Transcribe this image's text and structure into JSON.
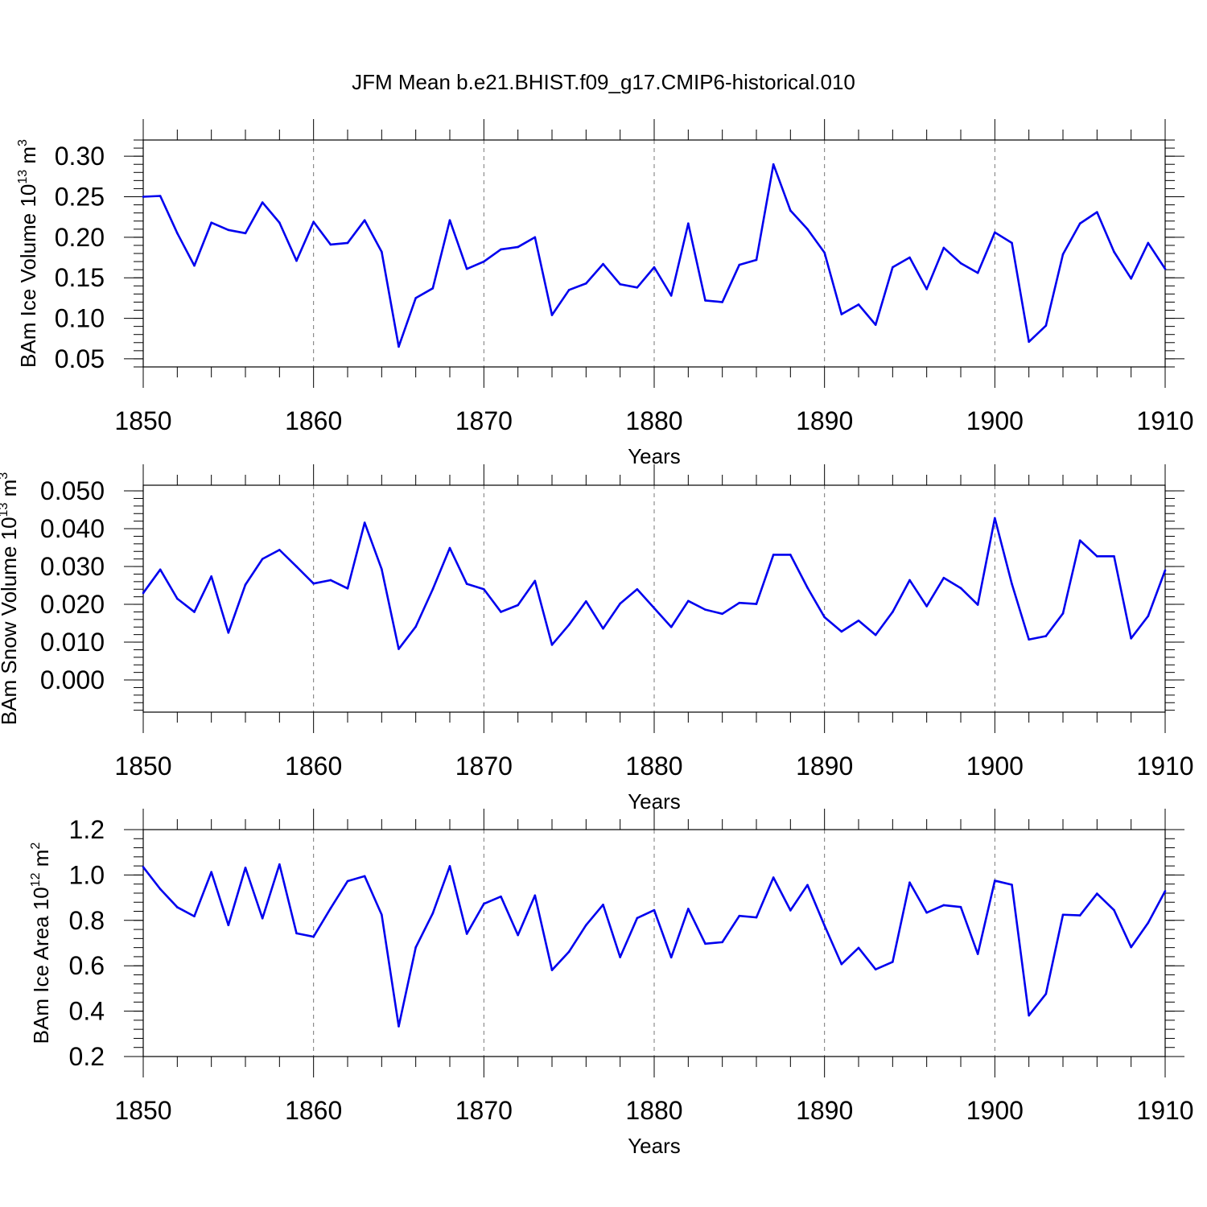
{
  "title": "JFM Mean b.e21.BHIST.f09_g17.CMIP6-historical.010",
  "colors": {
    "line": "#0000ee",
    "grid": "#777777",
    "axis": "#000000"
  },
  "chart_data": [
    {
      "type": "line",
      "xlabel": "Years",
      "ylabel": {
        "text": "BAm Ice Volume 10",
        "exp": "13",
        "unit": " m",
        "unit_exp": "3"
      },
      "xlim": [
        1850,
        1910
      ],
      "ylim": [
        0.04,
        0.32
      ],
      "x_ticks": [
        "1850",
        "1860",
        "1870",
        "1880",
        "1890",
        "1900",
        "1910"
      ],
      "y_ticks": [
        {
          "v": 0.05,
          "label": "0.05"
        },
        {
          "v": 0.1,
          "label": "0.10"
        },
        {
          "v": 0.15,
          "label": "0.15"
        },
        {
          "v": 0.2,
          "label": "0.20"
        },
        {
          "v": 0.25,
          "label": "0.25"
        },
        {
          "v": 0.3,
          "label": "0.30"
        }
      ],
      "y_minor_step": 0.01,
      "grid": "vertical dashed at major x ticks",
      "x": [
        1850,
        1851,
        1852,
        1853,
        1854,
        1855,
        1856,
        1857,
        1858,
        1859,
        1860,
        1861,
        1862,
        1863,
        1864,
        1865,
        1866,
        1867,
        1868,
        1869,
        1870,
        1871,
        1872,
        1873,
        1874,
        1875,
        1876,
        1877,
        1878,
        1879,
        1880,
        1881,
        1882,
        1883,
        1884,
        1885,
        1886,
        1887,
        1888,
        1889,
        1890,
        1891,
        1892,
        1893,
        1894,
        1895,
        1896,
        1897,
        1898,
        1899,
        1900,
        1901,
        1902,
        1903,
        1904,
        1905,
        1906,
        1907,
        1908,
        1909,
        1910
      ],
      "values": [
        0.25,
        0.251,
        0.205,
        0.165,
        0.218,
        0.209,
        0.205,
        0.243,
        0.218,
        0.171,
        0.219,
        0.191,
        0.193,
        0.221,
        0.182,
        0.065,
        0.125,
        0.137,
        0.221,
        0.161,
        0.17,
        0.185,
        0.188,
        0.2,
        0.104,
        0.135,
        0.143,
        0.167,
        0.142,
        0.138,
        0.163,
        0.128,
        0.217,
        0.122,
        0.12,
        0.166,
        0.172,
        0.29,
        0.233,
        0.21,
        0.181,
        0.105,
        0.117,
        0.092,
        0.163,
        0.175,
        0.136,
        0.187,
        0.168,
        0.156,
        0.206,
        0.193,
        0.071,
        0.091,
        0.179,
        0.217,
        0.231,
        0.182,
        0.149,
        0.193,
        0.161
      ]
    },
    {
      "type": "line",
      "xlabel": "Years",
      "ylabel": {
        "text": "BAm Snow Volume 10",
        "exp": "13",
        "unit": " m",
        "unit_exp": "3"
      },
      "xlim": [
        1850,
        1910
      ],
      "ylim": [
        -0.0085,
        0.0515
      ],
      "x_ticks": [
        "1850",
        "1860",
        "1870",
        "1880",
        "1890",
        "1900",
        "1910"
      ],
      "y_ticks": [
        {
          "v": 0.0,
          "label": "0.000"
        },
        {
          "v": 0.01,
          "label": "0.010"
        },
        {
          "v": 0.02,
          "label": "0.020"
        },
        {
          "v": 0.03,
          "label": "0.030"
        },
        {
          "v": 0.04,
          "label": "0.040"
        },
        {
          "v": 0.05,
          "label": "0.050"
        }
      ],
      "y_minor_step": 0.002,
      "grid": "vertical dashed at major x ticks",
      "x": [
        1850,
        1851,
        1852,
        1853,
        1854,
        1855,
        1856,
        1857,
        1858,
        1859,
        1860,
        1861,
        1862,
        1863,
        1864,
        1865,
        1866,
        1867,
        1868,
        1869,
        1870,
        1871,
        1872,
        1873,
        1874,
        1875,
        1876,
        1877,
        1878,
        1879,
        1880,
        1881,
        1882,
        1883,
        1884,
        1885,
        1886,
        1887,
        1888,
        1889,
        1890,
        1891,
        1892,
        1893,
        1894,
        1895,
        1896,
        1897,
        1898,
        1899,
        1900,
        1901,
        1902,
        1903,
        1904,
        1905,
        1906,
        1907,
        1908,
        1909,
        1910
      ],
      "values": [
        0.023,
        0.0292,
        0.0215,
        0.018,
        0.0274,
        0.0125,
        0.0252,
        0.032,
        0.0344,
        0.03,
        0.0255,
        0.0264,
        0.0242,
        0.0416,
        0.0293,
        0.0082,
        0.0141,
        0.024,
        0.0349,
        0.0254,
        0.024,
        0.018,
        0.0198,
        0.0262,
        0.0093,
        0.0146,
        0.0208,
        0.0136,
        0.0202,
        0.024,
        0.019,
        0.014,
        0.0209,
        0.0186,
        0.0175,
        0.0204,
        0.0201,
        0.0331,
        0.0331,
        0.0244,
        0.0166,
        0.0128,
        0.0157,
        0.0119,
        0.018,
        0.0264,
        0.0195,
        0.027,
        0.0243,
        0.0199,
        0.0428,
        0.0254,
        0.0107,
        0.0116,
        0.0176,
        0.0369,
        0.0327,
        0.0327,
        0.011,
        0.0169,
        0.029
      ]
    },
    {
      "type": "line",
      "xlabel": "Years",
      "ylabel": {
        "text": "BAm Ice Area 10",
        "exp": "12",
        "unit": " m",
        "unit_exp": "2"
      },
      "xlim": [
        1850,
        1910
      ],
      "ylim": [
        0.2,
        1.2
      ],
      "x_ticks": [
        "1850",
        "1860",
        "1870",
        "1880",
        "1890",
        "1900",
        "1910"
      ],
      "y_ticks": [
        {
          "v": 0.2,
          "label": "0.2"
        },
        {
          "v": 0.4,
          "label": "0.4"
        },
        {
          "v": 0.6,
          "label": "0.6"
        },
        {
          "v": 0.8,
          "label": "0.8"
        },
        {
          "v": 1.0,
          "label": "1.0"
        },
        {
          "v": 1.2,
          "label": "1.2"
        }
      ],
      "y_minor_step": 0.04,
      "grid": "vertical dashed at major x ticks",
      "x": [
        1850,
        1851,
        1852,
        1853,
        1854,
        1855,
        1856,
        1857,
        1858,
        1859,
        1860,
        1861,
        1862,
        1863,
        1864,
        1865,
        1866,
        1867,
        1868,
        1869,
        1870,
        1871,
        1872,
        1873,
        1874,
        1875,
        1876,
        1877,
        1878,
        1879,
        1880,
        1881,
        1882,
        1883,
        1884,
        1885,
        1886,
        1887,
        1888,
        1889,
        1890,
        1891,
        1892,
        1893,
        1894,
        1895,
        1896,
        1897,
        1898,
        1899,
        1900,
        1901,
        1902,
        1903,
        1904,
        1905,
        1906,
        1907,
        1908,
        1909,
        1910
      ],
      "values": [
        1.035,
        0.938,
        0.858,
        0.818,
        1.013,
        0.779,
        1.032,
        0.809,
        1.047,
        0.743,
        0.728,
        0.853,
        0.973,
        0.995,
        0.825,
        0.333,
        0.681,
        0.831,
        1.039,
        0.741,
        0.873,
        0.905,
        0.735,
        0.91,
        0.581,
        0.662,
        0.779,
        0.869,
        0.638,
        0.81,
        0.845,
        0.637,
        0.851,
        0.697,
        0.704,
        0.82,
        0.813,
        0.989,
        0.844,
        0.956,
        0.777,
        0.607,
        0.679,
        0.584,
        0.617,
        0.967,
        0.834,
        0.867,
        0.859,
        0.652,
        0.975,
        0.957,
        0.381,
        0.476,
        0.825,
        0.822,
        0.918,
        0.845,
        0.682,
        0.789,
        0.929
      ]
    }
  ]
}
